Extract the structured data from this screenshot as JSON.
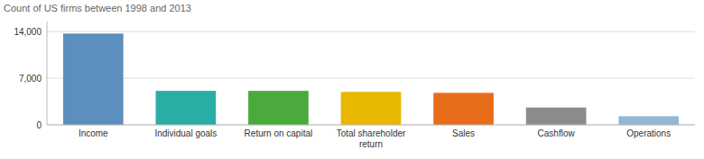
{
  "chart_data": {
    "type": "bar",
    "subtitle": "Count of US firms between 1998 and 2013",
    "categories": [
      "Income",
      "Individual goals",
      "Return on capital",
      "Total shareholder\nreturn",
      "Sales",
      "Cashflow",
      "Operations"
    ],
    "values": [
      13700,
      5100,
      5100,
      4950,
      4800,
      2600,
      1300
    ],
    "colors": [
      "#5b8fbe",
      "#2aada5",
      "#4aaa3c",
      "#e8b800",
      "#e86c1a",
      "#8c8c8c",
      "#92b8d8"
    ],
    "ylim": [
      0,
      15500
    ],
    "yticks": [
      0,
      {
        "value": 7000,
        "label": "7,000"
      },
      {
        "value": 14000,
        "label": "14,000"
      }
    ],
    "grid": true
  }
}
